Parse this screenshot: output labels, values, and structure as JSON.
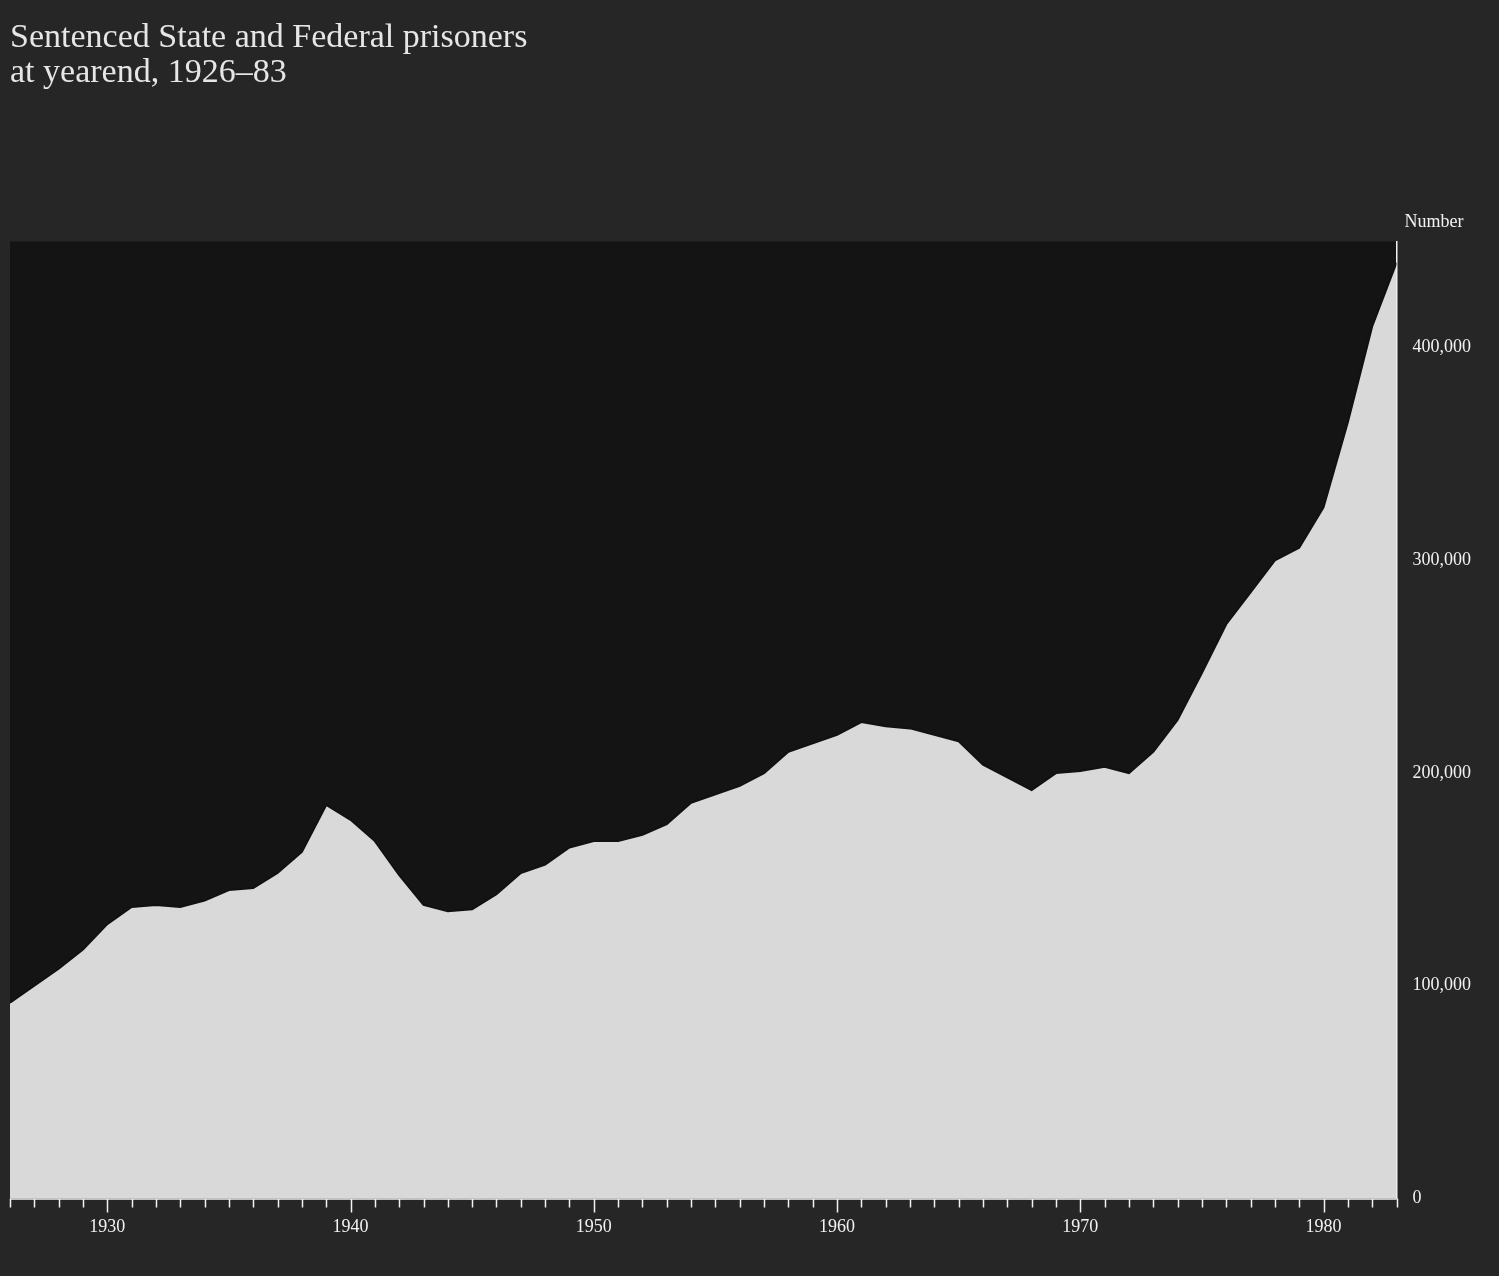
{
  "chart_data": {
    "type": "area",
    "title": [
      "Sentenced State and Federal prisoners",
      "at yearend, 1926–83"
    ],
    "ylabel": "Number",
    "x": [
      1926,
      1927,
      1928,
      1929,
      1930,
      1931,
      1932,
      1933,
      1934,
      1935,
      1936,
      1937,
      1938,
      1939,
      1940,
      1941,
      1942,
      1943,
      1944,
      1945,
      1946,
      1947,
      1948,
      1949,
      1950,
      1951,
      1952,
      1953,
      1954,
      1955,
      1956,
      1957,
      1958,
      1959,
      1960,
      1961,
      1962,
      1963,
      1964,
      1965,
      1966,
      1967,
      1968,
      1969,
      1970,
      1971,
      1972,
      1973,
      1974,
      1975,
      1976,
      1977,
      1978,
      1979,
      1980,
      1981,
      1982,
      1983
    ],
    "values": [
      92000,
      100000,
      108000,
      117000,
      129000,
      137000,
      138000,
      137000,
      140000,
      145000,
      146000,
      153000,
      163000,
      185000,
      178000,
      168000,
      152000,
      138000,
      135000,
      136000,
      143000,
      153000,
      157000,
      165000,
      168000,
      168000,
      171000,
      176000,
      186000,
      190000,
      194000,
      200000,
      210000,
      214000,
      218000,
      224000,
      222000,
      221000,
      218000,
      215000,
      204000,
      198000,
      192000,
      200000,
      201000,
      203000,
      200000,
      210000,
      225000,
      247000,
      270000,
      285000,
      300000,
      306000,
      325000,
      365000,
      410000,
      440000
    ],
    "color": "#d9d9d9",
    "xlim": [
      1926,
      1983
    ],
    "xticks": [
      1930,
      1940,
      1950,
      1960,
      1970,
      1980
    ],
    "ylim": [
      0,
      450000
    ],
    "yticks": [
      0,
      {
        "value": 100000,
        "label": "100,000"
      },
      {
        "value": 200000,
        "label": "200,000"
      },
      {
        "value": 300000,
        "label": "300,000"
      },
      {
        "value": 400000,
        "label": "400,000"
      }
    ],
    "grid": false
  }
}
